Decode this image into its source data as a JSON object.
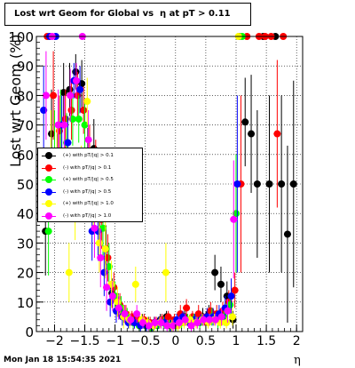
{
  "title": "Lost wrt Geom for Global vs  η at pT > 0.11",
  "timestamp": "Mon Jan 18 15:54:35 2021",
  "chart_data": {
    "type": "scatter",
    "xlabel": "η",
    "ylabel": "Lost wrt Geom (%)",
    "xlim": [
      -2.3,
      2.1
    ],
    "ylim": [
      0,
      100
    ],
    "x_ticks": [
      -2,
      -1.5,
      -1,
      -0.5,
      0,
      0.5,
      1,
      1.5,
      2
    ],
    "y_ticks": [
      0,
      10,
      20,
      30,
      40,
      50,
      60,
      70,
      80,
      90,
      100
    ],
    "grid": true,
    "legend_position": "middle-left",
    "series": [
      {
        "name": "(+) with pT/|q| > 0.1",
        "color": "#000000",
        "x": [
          -2.15,
          -2.05,
          -1.95,
          -1.85,
          -1.75,
          -1.65,
          -1.55,
          -1.45,
          -1.35,
          -1.25,
          -1.15,
          -1.05,
          -0.95,
          -0.85,
          -0.75,
          -0.65,
          -0.55,
          -0.45,
          -0.35,
          -0.25,
          -0.15,
          -0.05,
          0.05,
          0.15,
          0.25,
          0.35,
          0.45,
          0.55,
          0.65,
          0.75,
          0.85,
          0.95,
          1.05,
          1.15,
          1.25,
          1.35,
          1.45,
          1.55,
          1.65,
          1.75,
          1.85,
          1.95
        ],
        "y": [
          34,
          67,
          58,
          81,
          82,
          88,
          84,
          59,
          62,
          39,
          28,
          13,
          9,
          6,
          4,
          5,
          4,
          3,
          3,
          4,
          5,
          3,
          4,
          5,
          3,
          4,
          5,
          6,
          20,
          16,
          12,
          4,
          100,
          71,
          67,
          50,
          100,
          50,
          100,
          50,
          33,
          50
        ],
        "err": [
          15,
          15,
          12,
          10,
          9,
          6,
          8,
          10,
          10,
          10,
          8,
          5,
          4,
          3,
          2,
          2,
          2,
          2,
          2,
          2,
          2,
          2,
          2,
          2,
          2,
          2,
          3,
          3,
          6,
          6,
          5,
          3,
          0,
          15,
          20,
          25,
          0,
          30,
          0,
          30,
          30,
          35
        ]
      },
      {
        "name": "(-) with pT/|q| > 0.1",
        "color": "#ff0000",
        "x": [
          -2.12,
          -2.02,
          -1.92,
          -1.82,
          -1.72,
          -1.62,
          -1.52,
          -1.42,
          -1.32,
          -1.22,
          -1.12,
          -1.02,
          -0.92,
          -0.82,
          -0.72,
          -0.62,
          -0.52,
          -0.42,
          -0.32,
          -0.22,
          -0.12,
          -0.02,
          0.08,
          0.18,
          0.28,
          0.38,
          0.48,
          0.58,
          0.68,
          0.78,
          0.88,
          0.98,
          1.08,
          1.18,
          1.38,
          1.48,
          1.58,
          1.68,
          1.78
        ],
        "y": [
          100,
          80,
          68,
          72,
          75,
          80,
          75,
          60,
          55,
          38,
          25,
          15,
          9,
          6,
          5,
          4,
          4,
          3,
          3,
          4,
          5,
          4,
          6,
          8,
          5,
          6,
          4,
          7,
          6,
          7,
          10,
          14,
          50,
          100,
          100,
          100,
          100,
          67,
          100
        ],
        "err": [
          0,
          15,
          12,
          10,
          10,
          8,
          8,
          10,
          10,
          10,
          8,
          5,
          4,
          3,
          2,
          2,
          2,
          2,
          2,
          2,
          2,
          2,
          3,
          3,
          2,
          3,
          2,
          3,
          3,
          3,
          4,
          6,
          30,
          0,
          0,
          0,
          0,
          25,
          0
        ]
      },
      {
        "name": "(+) with pT/|q| > 0.5",
        "color": "#00ff00",
        "x": [
          -2.1,
          -2.0,
          -1.9,
          -1.8,
          -1.7,
          -1.6,
          -1.5,
          -1.4,
          -1.3,
          -1.2,
          -1.1,
          -1.0,
          -0.9,
          -0.8,
          -0.7,
          -0.6,
          -0.5,
          -0.4,
          -0.3,
          -0.2,
          -0.1,
          0.0,
          0.1,
          0.2,
          0.3,
          0.4,
          0.5,
          0.6,
          0.7,
          0.8,
          0.9,
          1.0,
          1.1
        ],
        "y": [
          34,
          60,
          70,
          64,
          72,
          72,
          70,
          52,
          50,
          35,
          22,
          12,
          8,
          5,
          3,
          2,
          2,
          1,
          2,
          3,
          2,
          2,
          3,
          4,
          4,
          3,
          4,
          5,
          4,
          5,
          9,
          40,
          100
        ],
        "err": [
          15,
          15,
          12,
          10,
          9,
          8,
          8,
          10,
          10,
          10,
          8,
          5,
          4,
          3,
          2,
          2,
          2,
          1,
          2,
          2,
          2,
          2,
          2,
          2,
          2,
          2,
          2,
          3,
          3,
          3,
          4,
          20,
          0
        ]
      },
      {
        "name": "(-) with pT/|q| > 0.5",
        "color": "#0000ff",
        "x": [
          -2.18,
          -2.08,
          -1.98,
          -1.88,
          -1.78,
          -1.68,
          -1.58,
          -1.48,
          -1.38,
          -1.28,
          -1.18,
          -1.08,
          -0.98,
          -0.88,
          -0.78,
          -0.68,
          -0.58,
          -0.48,
          -0.38,
          -0.28,
          -0.18,
          -0.08,
          0.02,
          0.12,
          0.22,
          0.32,
          0.42,
          0.52,
          0.62,
          0.72,
          0.82,
          0.92,
          1.02
        ],
        "y": [
          75,
          100,
          100,
          70,
          64,
          85,
          82,
          50,
          34,
          34,
          20,
          10,
          7,
          5,
          3,
          3,
          2,
          2,
          2,
          3,
          3,
          2,
          4,
          5,
          3,
          4,
          4,
          5,
          5,
          6,
          8,
          12,
          50
        ],
        "err": [
          15,
          0,
          0,
          10,
          9,
          6,
          8,
          10,
          10,
          10,
          8,
          5,
          4,
          3,
          2,
          2,
          2,
          2,
          2,
          2,
          2,
          2,
          2,
          2,
          2,
          2,
          2,
          3,
          3,
          3,
          4,
          6,
          30
        ]
      },
      {
        "name": "(+) with pT/|q| > 1.0",
        "color": "#ffff00",
        "x": [
          -2.06,
          -1.96,
          -1.86,
          -1.76,
          -1.66,
          -1.56,
          -1.46,
          -1.36,
          -1.26,
          -1.16,
          -1.06,
          -0.96,
          -0.86,
          -0.76,
          -0.66,
          -0.56,
          -0.46,
          -0.36,
          -0.26,
          -0.16,
          -0.06,
          0.04,
          0.14,
          0.24,
          0.34,
          0.44,
          0.54,
          0.64,
          0.74,
          0.84,
          0.94,
          1.04
        ],
        "y": [
          60,
          56,
          50,
          20,
          40,
          55,
          78,
          45,
          30,
          28,
          16,
          10,
          5,
          4,
          16,
          4,
          3,
          2,
          3,
          20,
          2,
          2,
          3,
          4,
          3,
          4,
          3,
          4,
          3,
          3,
          5,
          100
        ],
        "err": [
          15,
          15,
          12,
          10,
          9,
          8,
          8,
          10,
          10,
          10,
          8,
          5,
          4,
          3,
          6,
          2,
          2,
          2,
          2,
          10,
          2,
          2,
          2,
          2,
          2,
          2,
          2,
          2,
          2,
          2,
          3,
          0
        ]
      },
      {
        "name": "(-) with pT/|q| > 1.0",
        "color": "#ff00ff",
        "x": [
          -2.14,
          -2.04,
          -1.94,
          -1.84,
          -1.74,
          -1.64,
          -1.54,
          -1.44,
          -1.34,
          -1.24,
          -1.14,
          -1.04,
          -0.94,
          -0.84,
          -0.74,
          -0.64,
          -0.54,
          -0.44,
          -0.34,
          -0.24,
          -0.14,
          -0.04,
          0.06,
          0.16,
          0.26,
          0.36,
          0.46,
          0.56,
          0.66,
          0.76,
          0.86,
          0.96
        ],
        "y": [
          80,
          100,
          70,
          70,
          80,
          85,
          100,
          65,
          35,
          25,
          15,
          12,
          8,
          6,
          4,
          6,
          3,
          2,
          3,
          3,
          2,
          2,
          3,
          4,
          2,
          3,
          4,
          4,
          4,
          5,
          7,
          38
        ],
        "err": [
          15,
          0,
          12,
          10,
          9,
          6,
          0,
          10,
          10,
          10,
          8,
          5,
          4,
          3,
          2,
          3,
          2,
          2,
          2,
          2,
          2,
          2,
          2,
          2,
          2,
          2,
          2,
          2,
          2,
          3,
          4,
          20
        ]
      }
    ]
  }
}
